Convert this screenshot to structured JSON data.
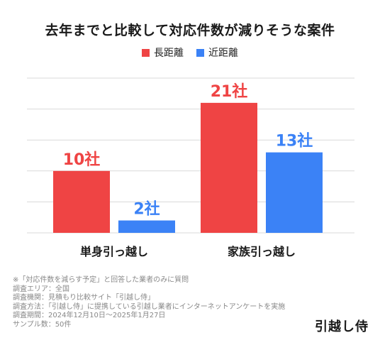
{
  "colors": {
    "long": "#ef4444",
    "short": "#3b82f6",
    "grid": "#d9d9d9"
  },
  "chart_data": {
    "type": "bar",
    "title": "去年までと比較して対応件数が減りそうな案件",
    "categories": [
      "単身引っ越し",
      "家族引っ越し"
    ],
    "series": [
      {
        "name": "長距離",
        "values": [
          10,
          21
        ],
        "labels": [
          "10社",
          "21社"
        ]
      },
      {
        "name": "近距離",
        "values": [
          2,
          13
        ],
        "labels": [
          "2社",
          "13社"
        ]
      }
    ],
    "ylim": [
      0,
      25
    ],
    "grid": true,
    "legend": "top-center"
  },
  "notes": [
    "※「対応件数を減らす予定」と回答した業者のみに質問",
    "調査エリア：全国",
    "調査機関：見積もり比較サイト「引越し侍」",
    "調査方法：「引越し侍」に提携している引越し業者にインターネットアンケートを実施",
    "調査期間：2024年12月10日〜2025年1月27日",
    "サンプル数：50件"
  ],
  "brand": "引越し侍"
}
